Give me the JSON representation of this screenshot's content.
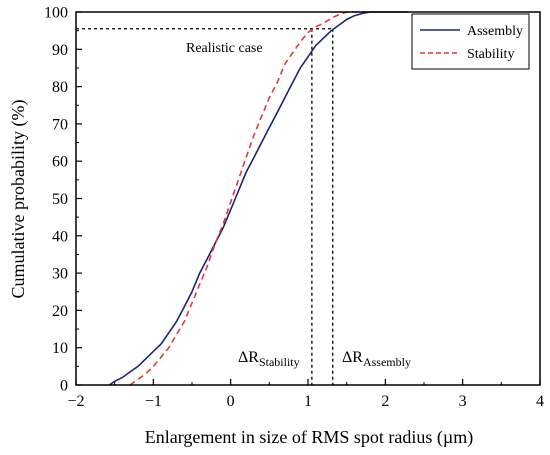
{
  "chart_data": {
    "type": "line",
    "xlabel": "Enlargement in size of RMS spot radius (µm)",
    "ylabel": "Cumulative probability (%)",
    "xlim": [
      -2,
      4
    ],
    "ylim": [
      0,
      100
    ],
    "x_ticks": [
      "−2",
      "−1",
      "0",
      "1",
      "2",
      "3",
      "4"
    ],
    "y_ticks": [
      "0",
      "10",
      "20",
      "30",
      "40",
      "50",
      "60",
      "70",
      "80",
      "90",
      "100"
    ],
    "grid": false,
    "legend_position": "top-right",
    "series": [
      {
        "name": "Assembly",
        "color": "#1a237e",
        "style": "solid",
        "points": [
          [
            -1.57,
            0
          ],
          [
            -1.5,
            1
          ],
          [
            -1.4,
            2
          ],
          [
            -1.3,
            3.5
          ],
          [
            -1.2,
            5
          ],
          [
            -1.1,
            7
          ],
          [
            -1.0,
            9
          ],
          [
            -0.9,
            11
          ],
          [
            -0.8,
            14
          ],
          [
            -0.7,
            17
          ],
          [
            -0.6,
            21
          ],
          [
            -0.5,
            25
          ],
          [
            -0.4,
            30
          ],
          [
            -0.3,
            34
          ],
          [
            -0.2,
            38
          ],
          [
            -0.1,
            42
          ],
          [
            0.0,
            47
          ],
          [
            0.1,
            52
          ],
          [
            0.2,
            57
          ],
          [
            0.3,
            61
          ],
          [
            0.4,
            65
          ],
          [
            0.5,
            69
          ],
          [
            0.6,
            73
          ],
          [
            0.7,
            77
          ],
          [
            0.8,
            81
          ],
          [
            0.9,
            85
          ],
          [
            1.0,
            88
          ],
          [
            1.1,
            91
          ],
          [
            1.2,
            93
          ],
          [
            1.3,
            95
          ],
          [
            1.4,
            96.5
          ],
          [
            1.5,
            98
          ],
          [
            1.6,
            99
          ],
          [
            1.7,
            99.6
          ],
          [
            1.8,
            100
          ],
          [
            2.3,
            100
          ]
        ]
      },
      {
        "name": "Stability",
        "color": "#e53935",
        "style": "dashed",
        "points": [
          [
            -1.3,
            0
          ],
          [
            -1.2,
            1.5
          ],
          [
            -1.1,
            3
          ],
          [
            -1.0,
            5
          ],
          [
            -0.9,
            7.5
          ],
          [
            -0.8,
            10
          ],
          [
            -0.7,
            13.5
          ],
          [
            -0.6,
            17
          ],
          [
            -0.5,
            22
          ],
          [
            -0.4,
            27
          ],
          [
            -0.3,
            32
          ],
          [
            -0.2,
            38
          ],
          [
            -0.1,
            43
          ],
          [
            0.0,
            49
          ],
          [
            0.1,
            55
          ],
          [
            0.2,
            61
          ],
          [
            0.3,
            67
          ],
          [
            0.4,
            72
          ],
          [
            0.5,
            77
          ],
          [
            0.6,
            81
          ],
          [
            0.7,
            86
          ],
          [
            0.8,
            89
          ],
          [
            0.9,
            92
          ],
          [
            1.0,
            94.5
          ],
          [
            1.1,
            96
          ],
          [
            1.2,
            97
          ],
          [
            1.3,
            98.3
          ],
          [
            1.4,
            99.3
          ],
          [
            1.5,
            100
          ],
          [
            2.0,
            100
          ]
        ]
      }
    ],
    "annotations": {
      "realistic_case": "Realistic case",
      "realistic_level": 95.5,
      "delta_stability_x": 1.05,
      "delta_assembly_x": 1.32,
      "delta_symbol": "ΔR",
      "stability_sub": "Stability",
      "assembly_sub": "Assembly"
    }
  }
}
